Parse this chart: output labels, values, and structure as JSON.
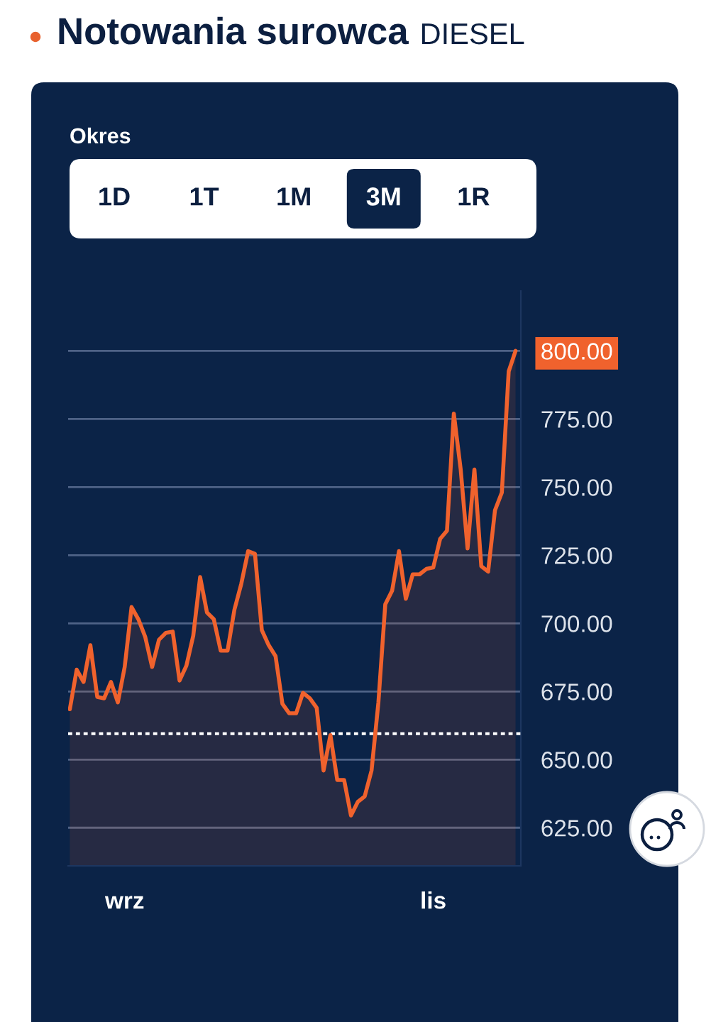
{
  "chart_data": {
    "type": "area",
    "title": "Notowania surowca",
    "subtitle": "DIESEL",
    "annotations": [
      "Okres",
      "1D",
      "1T",
      "1M",
      "3M",
      "1R"
    ],
    "categories": [
      null,
      null,
      null,
      null,
      null,
      null,
      null,
      null,
      "wrz",
      null,
      null,
      null,
      null,
      null,
      null,
      null,
      null,
      null,
      null,
      null,
      null,
      null,
      null,
      null,
      null,
      null,
      null,
      null,
      null,
      null,
      null,
      null,
      null,
      null,
      null,
      null,
      null,
      null,
      null,
      null,
      null,
      null,
      null,
      null,
      null,
      null,
      null,
      null,
      null,
      null,
      null,
      null,
      null,
      "lis",
      null,
      null,
      null,
      null,
      null,
      null,
      null,
      null,
      null,
      null,
      null,
      null
    ],
    "series": [
      {
        "color": "#f0622d",
        "values": [
          668.5,
          683,
          678.5,
          692,
          673,
          672.5,
          678.5,
          671,
          684,
          706,
          701.5,
          695,
          684,
          694,
          696.5,
          697,
          679,
          684.5,
          695.5,
          717,
          704,
          701.5,
          690,
          690,
          705,
          714.5,
          726.5,
          725.5,
          697.5,
          692,
          688,
          670.5,
          667,
          667,
          674.5,
          672.5,
          669,
          646,
          659,
          642.5,
          642.5,
          629.5,
          634.5,
          636.5,
          646,
          671,
          707,
          712,
          726.5,
          709,
          718,
          718,
          720,
          720.5,
          731,
          734,
          777,
          756.5,
          727.5,
          756.5,
          721,
          719,
          741.5,
          748,
          792.5,
          800
        ],
        "value_labels": [
          null,
          null,
          null,
          null,
          null,
          null,
          null,
          null,
          null,
          null,
          null,
          null,
          null,
          null,
          null,
          null,
          null,
          null,
          null,
          null,
          null,
          null,
          null,
          null,
          null,
          null,
          null,
          null,
          null,
          null,
          null,
          null,
          null,
          null,
          null,
          null,
          null,
          null,
          null,
          null,
          null,
          null,
          null,
          null,
          null,
          null,
          null,
          null,
          null,
          null,
          null,
          null,
          null,
          null,
          null,
          null,
          null,
          null,
          null,
          null,
          null,
          null,
          null,
          null,
          null,
          "800.00"
        ]
      }
    ],
    "ylim": [
      611,
      822
    ],
    "yticks": [
      {
        "value": 625,
        "label": "625.00"
      },
      {
        "value": 650,
        "label": "650.00"
      },
      {
        "value": 675,
        "label": "675.00"
      },
      {
        "value": 700,
        "label": "700.00"
      },
      {
        "value": 725,
        "label": "725.00"
      },
      {
        "value": 750,
        "label": "750.00"
      },
      {
        "value": 775,
        "label": "775.00"
      },
      {
        "value": 800,
        "label": null
      }
    ],
    "grid": "y",
    "ref_lines": [
      {
        "axis": "y",
        "value": 659.5,
        "color": "#ffffff",
        "line_style": "dotted"
      }
    ]
  }
}
